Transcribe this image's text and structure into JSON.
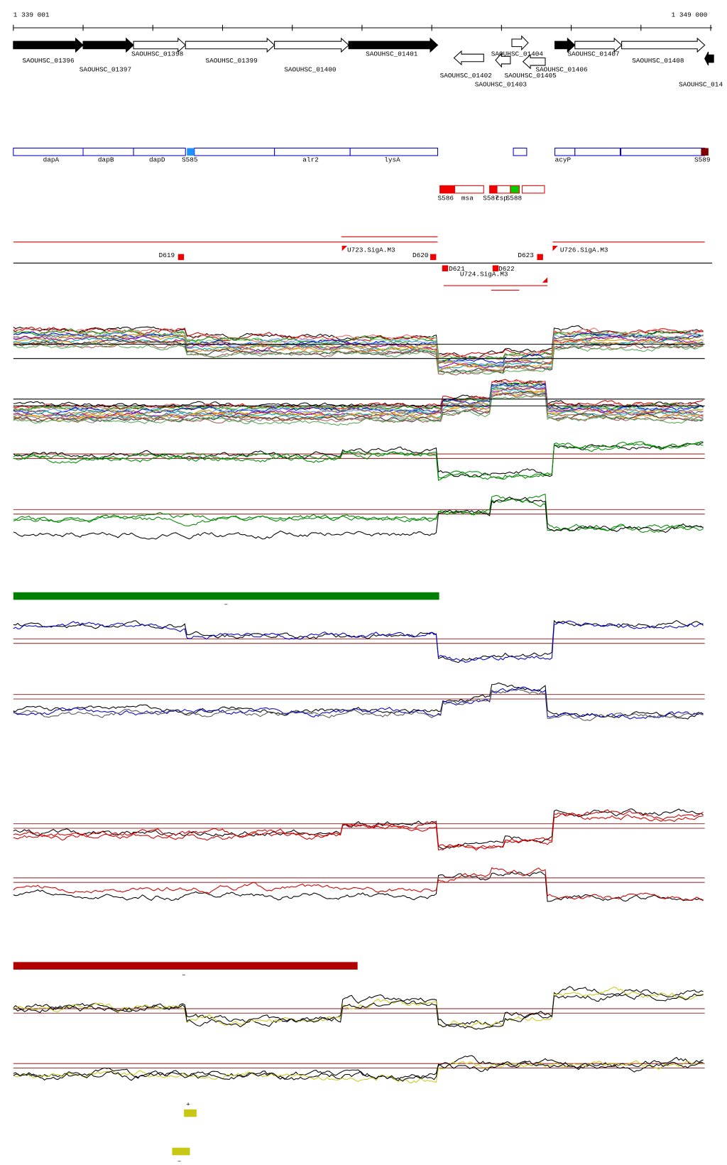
{
  "header": {
    "start": "1 339 001",
    "end": "1 349 000"
  },
  "genes": [
    {
      "label": "SAOUHSC_01396"
    },
    {
      "label": "SAOUHSC_01397"
    },
    {
      "label": "SAOUHSC_01398"
    },
    {
      "label": "SAOUHSC_01399"
    },
    {
      "label": "SAOUHSC_01400"
    },
    {
      "label": "SAOUHSC_01401"
    },
    {
      "label": "SAOUHSC_01402"
    },
    {
      "label": "SAOUHSC_01403"
    },
    {
      "label": "SAOUHSC_01404"
    },
    {
      "label": "SAOUHSC_01405"
    },
    {
      "label": "SAOUHSC_01406"
    },
    {
      "label": "SAOUHSC_01407"
    },
    {
      "label": "SAOUHSC_01408"
    },
    {
      "label": "SAOUHSC_014"
    }
  ],
  "features": [
    {
      "label": "dapA"
    },
    {
      "label": "dapB"
    },
    {
      "label": "dapD"
    },
    {
      "label": "S585"
    },
    {
      "label": "alr2"
    },
    {
      "label": "lysA"
    },
    {
      "label": "acyP"
    },
    {
      "label": "S589"
    }
  ],
  "small_features": [
    {
      "label": "S586"
    },
    {
      "label": "msa"
    },
    {
      "label": "S587"
    },
    {
      "label": "csp"
    },
    {
      "label": "S588"
    }
  ],
  "tss": [
    {
      "label": "D619"
    },
    {
      "label": "U723.SigA.M3"
    },
    {
      "label": "D620"
    },
    {
      "label": "D621"
    },
    {
      "label": "D622"
    },
    {
      "label": "U724.SigA.M3"
    },
    {
      "label": "D623"
    },
    {
      "label": "U726.SigA.M3"
    }
  ],
  "marks": [
    "–",
    "–",
    "+",
    "–"
  ]
}
